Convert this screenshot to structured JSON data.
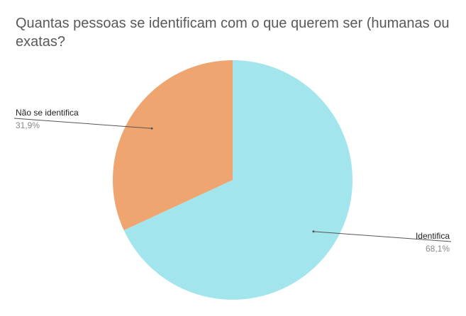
{
  "chart_data": {
    "type": "pie",
    "title": "Quantas pessoas se identificam com o que querem ser (humanas ou exatas?",
    "slices": [
      {
        "label": "Identifica",
        "value": 68.1,
        "value_label": "68,1%",
        "color": "#a2e5ec"
      },
      {
        "label": "Não se identifica",
        "value": 31.9,
        "value_label": "31,9%",
        "color": "#efa56f"
      }
    ],
    "start_angle": "12 o'clock",
    "direction": "clockwise",
    "legend": "none"
  },
  "colors": {
    "title_text": "#595959",
    "label_text": "#222222",
    "value_text": "#888888",
    "leader_line": "#555555"
  }
}
